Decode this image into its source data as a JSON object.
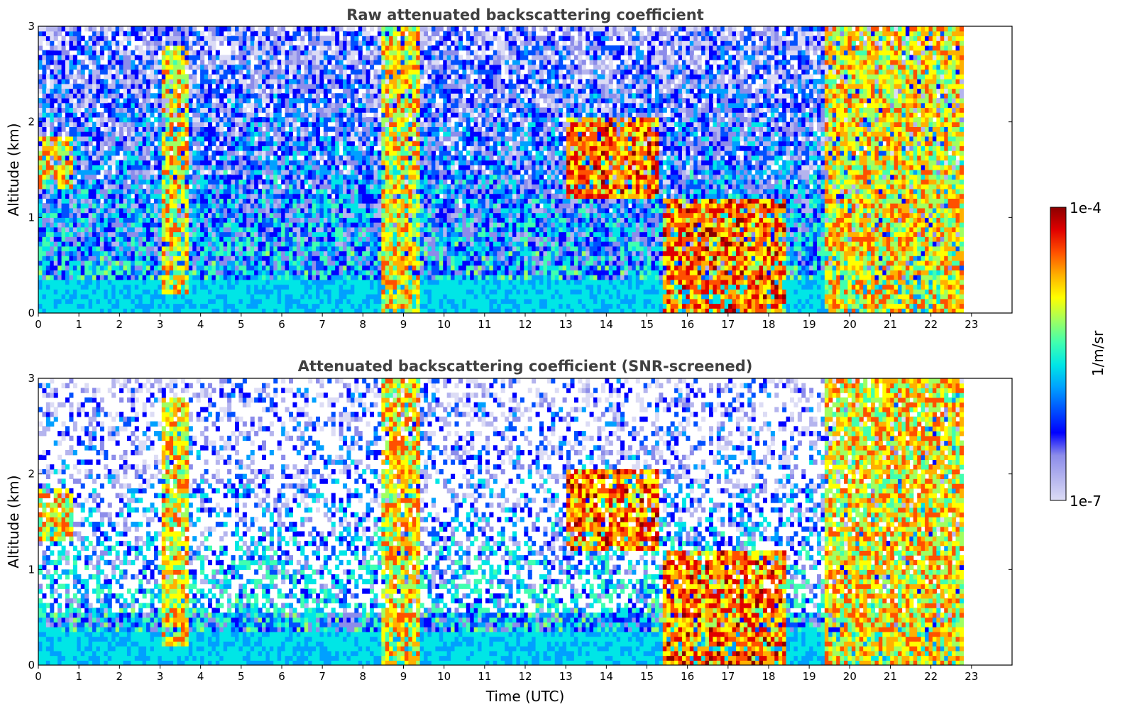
{
  "chart_data": [
    {
      "type": "heatmap",
      "title": "Raw attenuated backscattering coefficient",
      "ylabel": "Altitude (km)",
      "xlabel": "",
      "x_ticks": [
        "0",
        "1",
        "2",
        "3",
        "4",
        "5",
        "6",
        "7",
        "8",
        "9",
        "10",
        "11",
        "12",
        "13",
        "14",
        "15",
        "16",
        "17",
        "18",
        "19",
        "20",
        "21",
        "22",
        "23"
      ],
      "y_ticks": [
        "0",
        "1",
        "2",
        "3"
      ],
      "xlim": [
        0,
        24
      ],
      "ylim": [
        0,
        3
      ],
      "data_end_hour": 22.8,
      "features": [
        {
          "kind": "boundary_layer",
          "hours": [
            0,
            22.8
          ],
          "top_km": 0.35
        },
        {
          "kind": "cloud",
          "hours": [
            0.0,
            0.8
          ],
          "alt_km": [
            1.3,
            1.8
          ],
          "level": "high"
        },
        {
          "kind": "cloud",
          "hours": [
            3.0,
            3.7
          ],
          "alt_km": [
            0.2,
            2.8
          ],
          "level": "high"
        },
        {
          "kind": "cloud",
          "hours": [
            8.4,
            9.4
          ],
          "alt_km": [
            0.0,
            3.0
          ],
          "level": "high"
        },
        {
          "kind": "cloud",
          "hours": [
            13.0,
            15.2
          ],
          "alt_km": [
            1.2,
            2.0
          ],
          "level": "very_high"
        },
        {
          "kind": "cloud",
          "hours": [
            15.3,
            18.4
          ],
          "alt_km": [
            0.0,
            1.2
          ],
          "level": "very_high"
        },
        {
          "kind": "cloud",
          "hours": [
            19.3,
            22.8
          ],
          "alt_km": [
            0.0,
            3.0
          ],
          "level": "high"
        }
      ]
    },
    {
      "type": "heatmap",
      "title": "Attenuated backscattering coefficient (SNR-screened)",
      "ylabel": "Altitude (km)",
      "xlabel": "Time (UTC)",
      "x_ticks": [
        "0",
        "1",
        "2",
        "3",
        "4",
        "5",
        "6",
        "7",
        "8",
        "9",
        "10",
        "11",
        "12",
        "13",
        "14",
        "15",
        "16",
        "17",
        "18",
        "19",
        "20",
        "21",
        "22",
        "23"
      ],
      "y_ticks": [
        "0",
        "1",
        "2",
        "3"
      ],
      "xlim": [
        0,
        24
      ],
      "ylim": [
        0,
        3
      ],
      "data_end_hour": 22.8,
      "screened": true
    }
  ],
  "colorbar": {
    "label": "1/m/sr",
    "max_label": "1e-4",
    "min_label": "1e-7",
    "colors": [
      "#dcdcf5",
      "#b4b4ee",
      "#8c8cea",
      "#0000ff",
      "#0050ff",
      "#00a0ff",
      "#00e6e6",
      "#40ffb0",
      "#a0ff60",
      "#ffff00",
      "#ffb000",
      "#ff5000",
      "#e00000",
      "#8b0000"
    ]
  }
}
